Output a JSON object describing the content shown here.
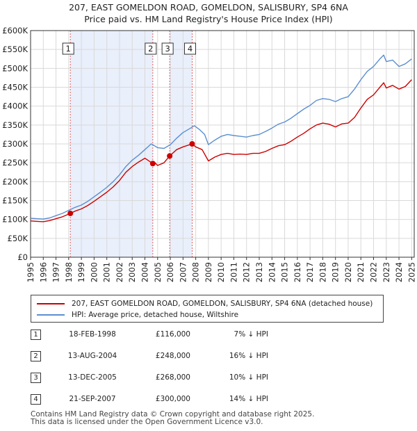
{
  "title": [
    "207, EAST GOMELDON ROAD, GOMELDON, SALISBURY, SP4 6NA",
    "Price paid vs. HM Land Registry's House Price Index (HPI)"
  ],
  "colors": {
    "price_paid": "#cc0000",
    "hpi": "#5b8fd0",
    "shade": "#e9effb",
    "grid": "#d9d9d9",
    "vline": "#e06060"
  },
  "chart_data": {
    "type": "line",
    "title": "Price paid vs. HM Land Registry's House Price Index (HPI)",
    "xlim": [
      1995,
      2025.2
    ],
    "ylim": [
      0,
      600000
    ],
    "x_ticks": [
      "1995",
      "1996",
      "1997",
      "1998",
      "1999",
      "2000",
      "2001",
      "2002",
      "2003",
      "2004",
      "2005",
      "2006",
      "2007",
      "2008",
      "2009",
      "2010",
      "2011",
      "2012",
      "2013",
      "2014",
      "2015",
      "2016",
      "2017",
      "2018",
      "2019",
      "2020",
      "2021",
      "2022",
      "2023",
      "2024",
      "2025"
    ],
    "y_ticks": [
      {
        "value": 0,
        "label": "£0"
      },
      {
        "value": 50000,
        "label": "£50K"
      },
      {
        "value": 100000,
        "label": "£100K"
      },
      {
        "value": 150000,
        "label": "£150K"
      },
      {
        "value": 200000,
        "label": "£200K"
      },
      {
        "value": 250000,
        "label": "£250K"
      },
      {
        "value": 300000,
        "label": "£300K"
      },
      {
        "value": 350000,
        "label": "£350K"
      },
      {
        "value": 400000,
        "label": "£400K"
      },
      {
        "value": 450000,
        "label": "£450K"
      },
      {
        "value": 500000,
        "label": "£500K"
      },
      {
        "value": 550000,
        "label": "£550K"
      },
      {
        "value": 600000,
        "label": "£600K"
      }
    ],
    "shaded_ranges": [
      [
        1998.13,
        2004.62
      ],
      [
        2005.95,
        2007.72
      ]
    ],
    "series": [
      {
        "name": "207, EAST GOMELDON ROAD, GOMELDON, SALISBURY, SP4 6NA (detached house)",
        "color": "#cc0000",
        "x": [
          1995.0,
          1995.5,
          1996.0,
          1996.5,
          1997.0,
          1997.5,
          1998.13,
          1998.5,
          1999.0,
          1999.5,
          2000.0,
          2000.5,
          2001.0,
          2001.5,
          2002.0,
          2002.5,
          2003.0,
          2003.5,
          2004.0,
          2004.62,
          2004.8,
          2005.0,
          2005.5,
          2005.95,
          2006.5,
          2007.0,
          2007.72,
          2008.0,
          2008.5,
          2009.0,
          2009.5,
          2010.0,
          2010.5,
          2011.0,
          2011.5,
          2012.0,
          2012.5,
          2013.0,
          2013.5,
          2014.0,
          2014.5,
          2015.0,
          2015.5,
          2016.0,
          2016.5,
          2017.0,
          2017.5,
          2018.0,
          2018.5,
          2019.0,
          2019.5,
          2020.0,
          2020.5,
          2021.0,
          2021.5,
          2022.0,
          2022.5,
          2022.8,
          2023.0,
          2023.5,
          2024.0,
          2024.5,
          2025.0
        ],
        "y": [
          96000,
          95000,
          94000,
          97000,
          102000,
          107000,
          116000,
          122000,
          128000,
          137000,
          148000,
          160000,
          172000,
          186000,
          203000,
          225000,
          240000,
          252000,
          262000,
          248000,
          250000,
          243000,
          250000,
          268000,
          285000,
          292000,
          300000,
          292000,
          285000,
          255000,
          265000,
          272000,
          275000,
          272000,
          273000,
          272000,
          275000,
          275000,
          280000,
          288000,
          295000,
          298000,
          307000,
          318000,
          328000,
          340000,
          350000,
          355000,
          352000,
          345000,
          353000,
          355000,
          370000,
          395000,
          418000,
          430000,
          450000,
          462000,
          448000,
          455000,
          445000,
          452000,
          470000
        ]
      },
      {
        "name": "HPI: Average price, detached house, Wiltshire",
        "color": "#5b8fd0",
        "x": [
          1995.0,
          1995.5,
          1996.0,
          1996.5,
          1997.0,
          1997.5,
          1998.0,
          1998.5,
          1999.0,
          1999.5,
          2000.0,
          2000.5,
          2001.0,
          2001.5,
          2002.0,
          2002.5,
          2003.0,
          2003.5,
          2004.0,
          2004.5,
          2005.0,
          2005.5,
          2006.0,
          2006.5,
          2007.0,
          2007.5,
          2007.9,
          2008.3,
          2008.7,
          2009.0,
          2009.5,
          2010.0,
          2010.5,
          2011.0,
          2011.5,
          2012.0,
          2012.5,
          2013.0,
          2013.5,
          2014.0,
          2014.5,
          2015.0,
          2015.5,
          2016.0,
          2016.5,
          2017.0,
          2017.5,
          2018.0,
          2018.5,
          2019.0,
          2019.5,
          2020.0,
          2020.5,
          2021.0,
          2021.5,
          2022.0,
          2022.5,
          2022.8,
          2023.0,
          2023.5,
          2024.0,
          2024.5,
          2025.0
        ],
        "y": [
          103000,
          102000,
          101000,
          104000,
          110000,
          116000,
          124000,
          132000,
          138000,
          148000,
          160000,
          172000,
          185000,
          200000,
          218000,
          240000,
          257000,
          270000,
          285000,
          300000,
          290000,
          288000,
          298000,
          315000,
          330000,
          340000,
          348000,
          338000,
          325000,
          298000,
          310000,
          320000,
          325000,
          322000,
          320000,
          318000,
          322000,
          325000,
          333000,
          342000,
          352000,
          358000,
          368000,
          380000,
          392000,
          402000,
          415000,
          420000,
          418000,
          412000,
          420000,
          425000,
          445000,
          470000,
          492000,
          505000,
          525000,
          535000,
          518000,
          522000,
          505000,
          512000,
          525000
        ]
      }
    ],
    "transactions": [
      {
        "label": "1",
        "x": 1998.13,
        "y": 116000
      },
      {
        "label": "2",
        "x": 2004.62,
        "y": 248000
      },
      {
        "label": "3",
        "x": 2005.95,
        "y": 268000
      },
      {
        "label": "4",
        "x": 2007.72,
        "y": 300000
      }
    ]
  },
  "legend": {
    "price_paid": "207, EAST GOMELDON ROAD, GOMELDON, SALISBURY, SP4 6NA (detached house)",
    "hpi": "HPI: Average price, detached house, Wiltshire"
  },
  "transactions_table": [
    {
      "num": "1",
      "date": "18-FEB-1998",
      "price": "£116,000",
      "hpi": "7% ↓ HPI"
    },
    {
      "num": "2",
      "date": "13-AUG-2004",
      "price": "£248,000",
      "hpi": "16% ↓ HPI"
    },
    {
      "num": "3",
      "date": "13-DEC-2005",
      "price": "£268,000",
      "hpi": "10% ↓ HPI"
    },
    {
      "num": "4",
      "date": "21-SEP-2007",
      "price": "£300,000",
      "hpi": "14% ↓ HPI"
    }
  ],
  "footer": [
    "Contains HM Land Registry data © Crown copyright and database right 2025.",
    "This data is licensed under the Open Government Licence v3.0."
  ]
}
